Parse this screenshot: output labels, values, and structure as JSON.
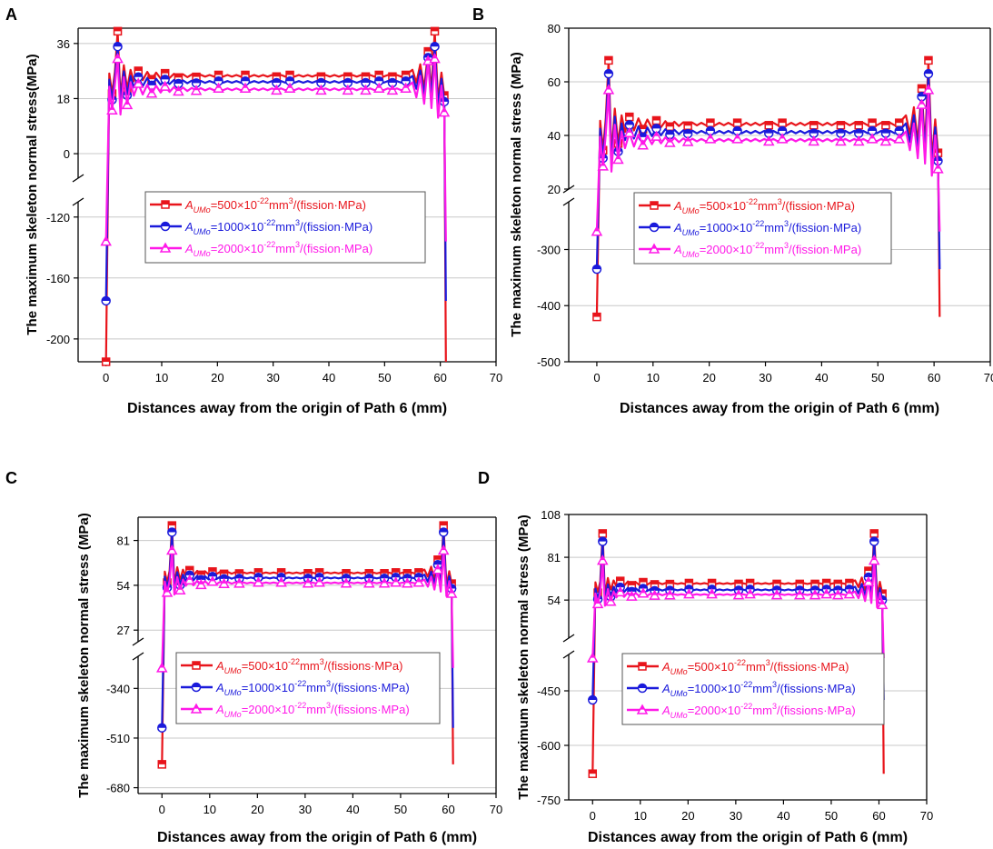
{
  "figure": {
    "colors": {
      "s1": "#e8141b",
      "s2": "#1a1adb",
      "s3": "#ff18e8",
      "axis": "#000000",
      "grid": "#c8c8c8"
    },
    "shared_x": {
      "label": "Distances away from the origin of Path 6 (mm)",
      "ticks": [
        "0",
        "10",
        "20",
        "30",
        "40",
        "50",
        "60",
        "70"
      ],
      "range": [
        -5,
        70
      ]
    },
    "shared_y_label": "The maximum skeleton normal stress (MPa)"
  },
  "chart_data": [
    {
      "panel": "A",
      "type": "line",
      "title": "",
      "xlabel": "Distances away from the origin of Path 6 (mm)",
      "ylabel": "The maximum skeleton normal stress(MPa)",
      "xlim": [
        -5,
        70
      ],
      "y_upper": {
        "range": [
          -8,
          41
        ],
        "ticks": [
          0,
          18,
          36
        ],
        "labels": [
          "0",
          "18",
          "36"
        ]
      },
      "y_lower": {
        "range": [
          -215,
          -110
        ],
        "ticks": [
          -120,
          -160,
          -200
        ],
        "labels": [
          "-120",
          "-160",
          "-200"
        ]
      },
      "legend": [
        {
          "prefix": "A",
          "sub": "UMo",
          "mid": "=500×10",
          "sup1": "-22",
          "mid2": "mm",
          "sup2": "3",
          "suffix": "/(fission·MPa)"
        },
        {
          "prefix": "A",
          "sub": "UMo",
          "mid": "=1000×10",
          "sup1": "-22",
          "mid2": "mm",
          "sup2": "3",
          "suffix": "/(fission·MPa)"
        },
        {
          "prefix": "A",
          "sub": "UMo",
          "mid": "=2000×10",
          "sup1": "-22",
          "mid2": "mm",
          "sup2": "3",
          "suffix": "/(fission·MPa)"
        }
      ],
      "series": [
        {
          "name": "AUMo=500",
          "ends": [
            -222,
            40,
            -222
          ],
          "plateau": 25,
          "amp": 3
        },
        {
          "name": "AUMo=1000",
          "ends": [
            -175,
            35,
            -175
          ],
          "plateau": 23,
          "amp": 3
        },
        {
          "name": "AUMo=2000",
          "ends": [
            -136,
            31,
            -136
          ],
          "plateau": 20.5,
          "amp": 3.5
        }
      ],
      "legend_position": "center"
    },
    {
      "panel": "B",
      "type": "line",
      "title": "",
      "xlabel": "Distances away from the origin of Path 6 (mm)",
      "ylabel": "The maximum skeleton normal stress (MPa)",
      "xlim": [
        -5,
        70
      ],
      "y_upper": {
        "range": [
          20,
          80
        ],
        "ticks": [
          20,
          40,
          60,
          80
        ],
        "labels": [
          "20",
          "40",
          "60",
          "80"
        ]
      },
      "y_lower": {
        "range": [
          -500,
          -215
        ],
        "ticks": [
          -300,
          -400,
          -500
        ],
        "labels": [
          "-300",
          "-400",
          "-500"
        ]
      },
      "legend": [
        {
          "prefix": "A",
          "sub": "UMo",
          "mid": "=500×10",
          "sup1": "-22",
          "mid2": "mm",
          "sup2": "3",
          "suffix": "/(fission·MPa)"
        },
        {
          "prefix": "A",
          "sub": "UMo",
          "mid": "=1000×10",
          "sup1": "-22",
          "mid2": "mm",
          "sup2": "3",
          "suffix": "/(fission·MPa)"
        },
        {
          "prefix": "A",
          "sub": "UMo",
          "mid": "=2000×10",
          "sup1": "-22",
          "mid2": "mm",
          "sup2": "3",
          "suffix": "/(fission·MPa)"
        }
      ],
      "series": [
        {
          "name": "AUMo=500",
          "ends": [
            -420,
            68,
            -420
          ],
          "plateau": 43.5,
          "amp": 5
        },
        {
          "name": "AUMo=1000",
          "ends": [
            -335,
            63,
            -335
          ],
          "plateau": 40.5,
          "amp": 5
        },
        {
          "name": "AUMo=2000",
          "ends": [
            -268,
            57,
            -268
          ],
          "plateau": 37.5,
          "amp": 5
        }
      ],
      "legend_position": "center"
    },
    {
      "panel": "C",
      "type": "line",
      "title": "",
      "xlabel": "Distances away from the origin of Path 6 (mm)",
      "ylabel": "The maximum skeleton normal stress (MPa)",
      "xlim": [
        -5,
        70
      ],
      "y_upper": {
        "range": [
          20,
          95
        ],
        "ticks": [
          27,
          54,
          81
        ],
        "labels": [
          "27",
          "54",
          "81"
        ]
      },
      "y_lower": {
        "range": [
          -700,
          -230
        ],
        "ticks": [
          -340,
          -510,
          -680
        ],
        "labels": [
          "-340",
          "-510",
          "-680"
        ]
      },
      "legend": [
        {
          "prefix": "A",
          "sub": "UMo",
          "mid": "=500×10",
          "sup1": "-22",
          "mid2": "mm",
          "sup2": "3",
          "suffix": "/(fissions·MPa)"
        },
        {
          "prefix": "A",
          "sub": "UMo",
          "mid": "=1000×10",
          "sup1": "-22",
          "mid2": "mm",
          "sup2": "3",
          "suffix": "/(fissions·MPa)"
        },
        {
          "prefix": "A",
          "sub": "UMo",
          "mid": "=2000×10",
          "sup1": "-22",
          "mid2": "mm",
          "sup2": "3",
          "suffix": "/(fissions·MPa)"
        }
      ],
      "series": [
        {
          "name": "AUMo=500",
          "ends": [
            -600,
            90,
            -600
          ],
          "plateau": 61,
          "amp": 3
        },
        {
          "name": "AUMo=1000",
          "ends": [
            -475,
            86,
            -475
          ],
          "plateau": 58,
          "amp": 3
        },
        {
          "name": "AUMo=2000",
          "ends": [
            -270,
            75,
            -270
          ],
          "plateau": 55,
          "amp": 3
        }
      ],
      "legend_position": "center"
    },
    {
      "panel": "D",
      "type": "line",
      "title": "",
      "xlabel": "Distances away from the origin of Path 6 (mm)",
      "ylabel": "The maximum skeleton normal stress (MPa)",
      "xlim": [
        -5,
        70
      ],
      "y_upper": {
        "range": [
          30,
          108
        ],
        "ticks": [
          54,
          81,
          108
        ],
        "labels": [
          "54",
          "81",
          "108"
        ]
      },
      "y_lower": {
        "range": [
          -750,
          -350
        ],
        "ticks": [
          -450,
          -600,
          -750
        ],
        "labels": [
          "-450",
          "-600",
          "-750"
        ]
      },
      "legend": [
        {
          "prefix": "A",
          "sub": "UMo",
          "mid": "=500×10",
          "sup1": "-22",
          "mid2": "mm",
          "sup2": "3",
          "suffix": "/(fissions·MPa)"
        },
        {
          "prefix": "A",
          "sub": "UMo",
          "mid": "=1000×10",
          "sup1": "-22",
          "mid2": "mm",
          "sup2": "3",
          "suffix": "/(fissions·MPa)"
        },
        {
          "prefix": "A",
          "sub": "UMo",
          "mid": "=2000×10",
          "sup1": "-22",
          "mid2": "mm",
          "sup2": "3",
          "suffix": "/(fissions·MPa)"
        }
      ],
      "series": [
        {
          "name": "AUMo=500",
          "ends": [
            -678,
            96,
            -678
          ],
          "plateau": 64,
          "amp": 3
        },
        {
          "name": "AUMo=1000",
          "ends": [
            -475,
            91,
            -475
          ],
          "plateau": 60,
          "amp": 3
        },
        {
          "name": "AUMo=2000",
          "ends": [
            -360,
            79,
            -360
          ],
          "plateau": 57,
          "amp": 3
        }
      ],
      "legend_position": "center"
    }
  ]
}
